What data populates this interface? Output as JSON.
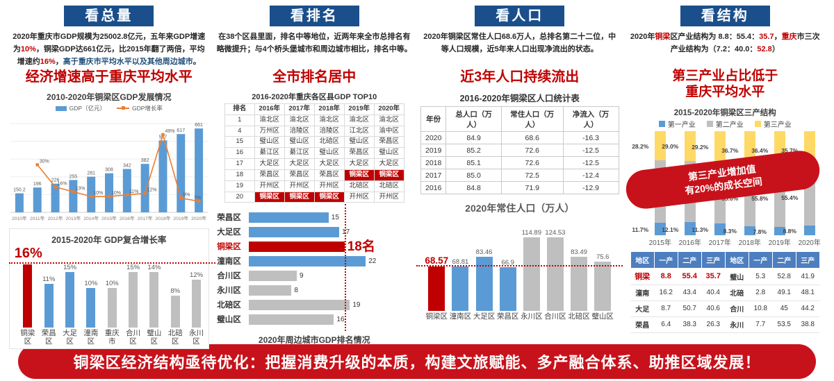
{
  "banner": "铜梁区经济结构亟待优化：把握消费升级的本质，构建文旅赋能、多产融合体系、助推区域发展！",
  "colors": {
    "header_blue": "#1a4f8b",
    "accent_red": "#c00000",
    "banner_red": "#c8121b",
    "bar_blue": "#5b9bd5",
    "bar_gray": "#bfbfbf",
    "line_orange": "#ed7d31",
    "stack_yellow": "#ffd966",
    "table_header_blue": "#4d7ebf"
  },
  "columns": [
    {
      "header": "看总量",
      "intro": [
        {
          "t": "2020年重庆市GDP规模为25002.8亿元，五年来GDP增速为"
        },
        {
          "t": "10%",
          "c": "red"
        },
        {
          "t": "，铜梁GDP达661亿元，比2015年翻了两倍，平均增速约"
        },
        {
          "t": "16%",
          "c": "red"
        },
        {
          "t": "，"
        },
        {
          "t": "高于重庆市平均水平以及其他周边城市",
          "c": "blue"
        },
        {
          "t": "。"
        }
      ],
      "headline_lines": [
        "经济增速高于重庆平均水平"
      ]
    },
    {
      "header": "看排名",
      "intro": [
        {
          "t": "在38个区县里面，排名中等地位，近两年来全市总排名有略微提升；与4个桥头堡城市和周边城市相比，排名中等。"
        }
      ],
      "headline_lines": [
        "全市排名居中"
      ]
    },
    {
      "header": "看人口",
      "intro": [
        {
          "t": "2020年铜梁区常住人口68.6万人，总排名第二十二位，中等人口规模，近5年来人口出现净流出的状态。"
        }
      ],
      "headline_lines": [
        "近3年人口持续流出"
      ]
    },
    {
      "header": "看结构",
      "intro": [
        {
          "t": "2020年"
        },
        {
          "t": "铜梁",
          "c": "red"
        },
        {
          "t": "区产业结构为 8.8：55.4："
        },
        {
          "t": "35.7",
          "c": "red"
        },
        {
          "t": "，"
        },
        {
          "t": "重庆",
          "c": "red"
        },
        {
          "t": "市三次产业结构为（7.2：40.0："
        },
        {
          "t": "52.8",
          "c": "red"
        },
        {
          "t": "）"
        }
      ],
      "headline_lines": [
        "第三产业占比低于",
        "重庆平均水平"
      ]
    }
  ],
  "chart_data": [
    {
      "id": "gdp_trend",
      "type": "bar+line",
      "title": "2010-2020年铜梁区GDP发展情况",
      "categories": [
        "2010年",
        "2011年",
        "2012年",
        "2013年",
        "2014年",
        "2015年",
        "2016年",
        "2017年",
        "2018年",
        "2019年",
        "2020年"
      ],
      "series": [
        {
          "name": "GDP（亿元）",
          "type": "bar",
          "values": [
            150.2,
            196,
            226,
            255,
            281,
            308,
            342,
            382,
            567,
            617,
            661
          ]
        },
        {
          "name": "GDP增长率",
          "type": "line",
          "unit": "%",
          "values": [
            null,
            30,
            16,
            13,
            10,
            10,
            11,
            12,
            49,
            9,
            7
          ]
        }
      ],
      "ylim": [
        0,
        700
      ],
      "grid": true,
      "legend_position": "top"
    },
    {
      "id": "cagr",
      "type": "bar",
      "title": "2015-2020年 GDP复合增长率",
      "categories": [
        "铜梁区",
        "荣昌区",
        "大足区",
        "潼南区",
        "重庆市",
        "合川区",
        "璧山区",
        "北碚区",
        "永川区"
      ],
      "values": [
        16,
        11,
        15,
        10,
        10,
        15,
        14,
        8,
        12
      ],
      "unit": "%",
      "bar_colors": [
        "red",
        "blue",
        "blue",
        "blue",
        "gray",
        "gray",
        "gray",
        "gray",
        "gray"
      ],
      "refline": 16,
      "refline_label": "16%",
      "ylim": [
        0,
        16
      ]
    },
    {
      "id": "rank_top10_table",
      "type": "table",
      "title": "2016-2020年重庆各区县GDP TOP10",
      "headers": [
        "排名",
        "2016年",
        "2017年",
        "2018年",
        "2019年",
        "2020年"
      ],
      "rows": [
        [
          "1",
          "渝北区",
          "渝北区",
          "渝北区",
          "渝北区",
          "渝北区"
        ],
        [
          "4",
          "万州区",
          "涪陵区",
          "涪陵区",
          "江北区",
          "渝中区"
        ],
        [
          "15",
          "璧山区",
          "璧山区",
          "北碚区",
          "璧山区",
          "荣昌区"
        ],
        [
          "16",
          "綦江区",
          "綦江区",
          "璧山区",
          "荣昌区",
          "璧山区"
        ],
        [
          "17",
          "大足区",
          "大足区",
          "大足区",
          "大足区",
          "大足区"
        ],
        [
          "18",
          "荣昌区",
          "荣昌区",
          "荣昌区",
          "铜梁区",
          "铜梁区"
        ],
        [
          "19",
          "开州区",
          "开州区",
          "开州区",
          "北碚区",
          "北碚区"
        ],
        [
          "20",
          "铜梁区",
          "铜梁区",
          "铜梁区",
          "开州区",
          "开州区"
        ]
      ],
      "red_bg_cells": [
        [
          5,
          4
        ],
        [
          5,
          5
        ],
        [
          7,
          1
        ],
        [
          7,
          2
        ],
        [
          7,
          3
        ]
      ]
    },
    {
      "id": "rank_hbar",
      "type": "hbar",
      "title": "2020年周边城市GDP排名情况",
      "categories": [
        "荣昌区",
        "大足区",
        "铜梁区",
        "潼南区",
        "合川区",
        "永川区",
        "北碚区",
        "璧山区"
      ],
      "values": [
        15,
        17,
        18,
        22,
        9,
        8,
        19,
        16
      ],
      "bar_colors": [
        "blue",
        "blue",
        "red",
        "blue",
        "gray",
        "gray",
        "gray",
        "gray"
      ],
      "annotation": "18名",
      "refline": 18,
      "xlim": [
        0,
        22
      ]
    },
    {
      "id": "pop_table",
      "type": "table",
      "title": "2016-2020年铜梁区人口统计表",
      "headers": [
        "年份",
        "总人口（万人）",
        "常住人口（万人）",
        "净流入（万人）"
      ],
      "rows": [
        [
          "2020",
          "84.9",
          "68.6",
          "-16.3"
        ],
        [
          "2019",
          "85.2",
          "72.6",
          "-12.5"
        ],
        [
          "2018",
          "85.1",
          "72.6",
          "-12.5"
        ],
        [
          "2017",
          "85.0",
          "72.5",
          "-12.4"
        ],
        [
          "2016",
          "84.8",
          "71.9",
          "-12.9"
        ]
      ]
    },
    {
      "id": "pop_bar",
      "type": "bar",
      "title": "2020年常住人口（万人）",
      "categories": [
        "铜梁区",
        "潼南区",
        "大足区",
        "荣昌区",
        "永川区",
        "合川区",
        "北碚区",
        "璧山区"
      ],
      "values": [
        68.57,
        68.81,
        83.46,
        66.9,
        114.89,
        124.53,
        83.49,
        75.6
      ],
      "bar_colors": [
        "red",
        "blue",
        "blue",
        "blue",
        "gray",
        "gray",
        "gray",
        "gray"
      ],
      "refline": 68.57,
      "ylim": [
        0,
        126
      ]
    },
    {
      "id": "industry_stacked",
      "type": "stacked-bar",
      "title": "2015-2020年铜梁区三产结构",
      "categories": [
        "2015年",
        "2016年",
        "2017年",
        "2018年",
        "2019年",
        "2020年"
      ],
      "series": [
        {
          "name": "第一产业",
          "color": "blue",
          "values": [
            11.7,
            12.1,
            11.3,
            8.3,
            7.8,
            8.8
          ]
        },
        {
          "name": "第二产业",
          "color": "gray",
          "values": [
            60.1,
            58.9,
            59.5,
            55.0,
            55.8,
            55.4
          ]
        },
        {
          "name": "第三产业",
          "color": "yellow",
          "values": [
            28.2,
            29.0,
            29.2,
            36.7,
            36.4,
            35.7
          ]
        }
      ],
      "badge": "第三产业增加值\n有20%的成长空间",
      "ylim": [
        0,
        100
      ],
      "legend_position": "top"
    },
    {
      "id": "industry_table",
      "type": "table",
      "title": "",
      "headers": [
        "地区",
        "一产",
        "二产",
        "三产",
        "地区",
        "一产",
        "二产",
        "三产"
      ],
      "rows": [
        [
          "铜梁",
          "8.8",
          "55.4",
          "35.7",
          "璧山",
          "5.3",
          "52.8",
          "41.9"
        ],
        [
          "潼南",
          "16.2",
          "43.4",
          "40.4",
          "北碚",
          "2.8",
          "49.1",
          "48.1"
        ],
        [
          "大足",
          "8.7",
          "50.7",
          "40.6",
          "合川",
          "10.8",
          "45",
          "44.2"
        ],
        [
          "荣昌",
          "6.4",
          "38.3",
          "26.3",
          "永川",
          "7.7",
          "53.5",
          "38.8"
        ]
      ],
      "red_text_cells": [
        [
          0,
          0
        ],
        [
          0,
          1
        ],
        [
          0,
          2
        ],
        [
          0,
          3
        ]
      ]
    }
  ]
}
